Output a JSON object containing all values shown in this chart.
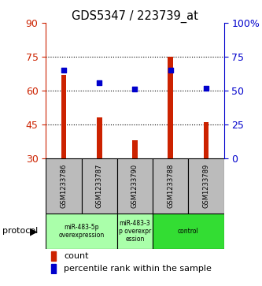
{
  "title": "GDS5347 / 223739_at",
  "samples": [
    "GSM1233786",
    "GSM1233787",
    "GSM1233790",
    "GSM1233788",
    "GSM1233789"
  ],
  "count_values": [
    67,
    48,
    38,
    75,
    46
  ],
  "percentile_values": [
    65,
    56,
    51,
    65,
    52
  ],
  "ylim_left": [
    30,
    90
  ],
  "ylim_right": [
    0,
    100
  ],
  "yticks_left": [
    30,
    45,
    60,
    75,
    90
  ],
  "yticks_right": [
    0,
    25,
    50,
    75,
    100
  ],
  "bar_color": "#cc2200",
  "dot_color": "#0000cc",
  "background_color": "#ffffff",
  "sample_bg_color": "#bbbbbb",
  "group_configs": [
    {
      "samples": [
        0,
        1
      ],
      "label": "miR-483-5p\noverexpression",
      "color": "#aaffaa"
    },
    {
      "samples": [
        2
      ],
      "label": "miR-483-3\np overexpr\nession",
      "color": "#aaffaa"
    },
    {
      "samples": [
        3,
        4
      ],
      "label": "control",
      "color": "#33dd33"
    }
  ],
  "protocol_label": "protocol",
  "legend_count_label": "count",
  "legend_percentile_label": "percentile rank within the sample",
  "bar_width": 0.15
}
